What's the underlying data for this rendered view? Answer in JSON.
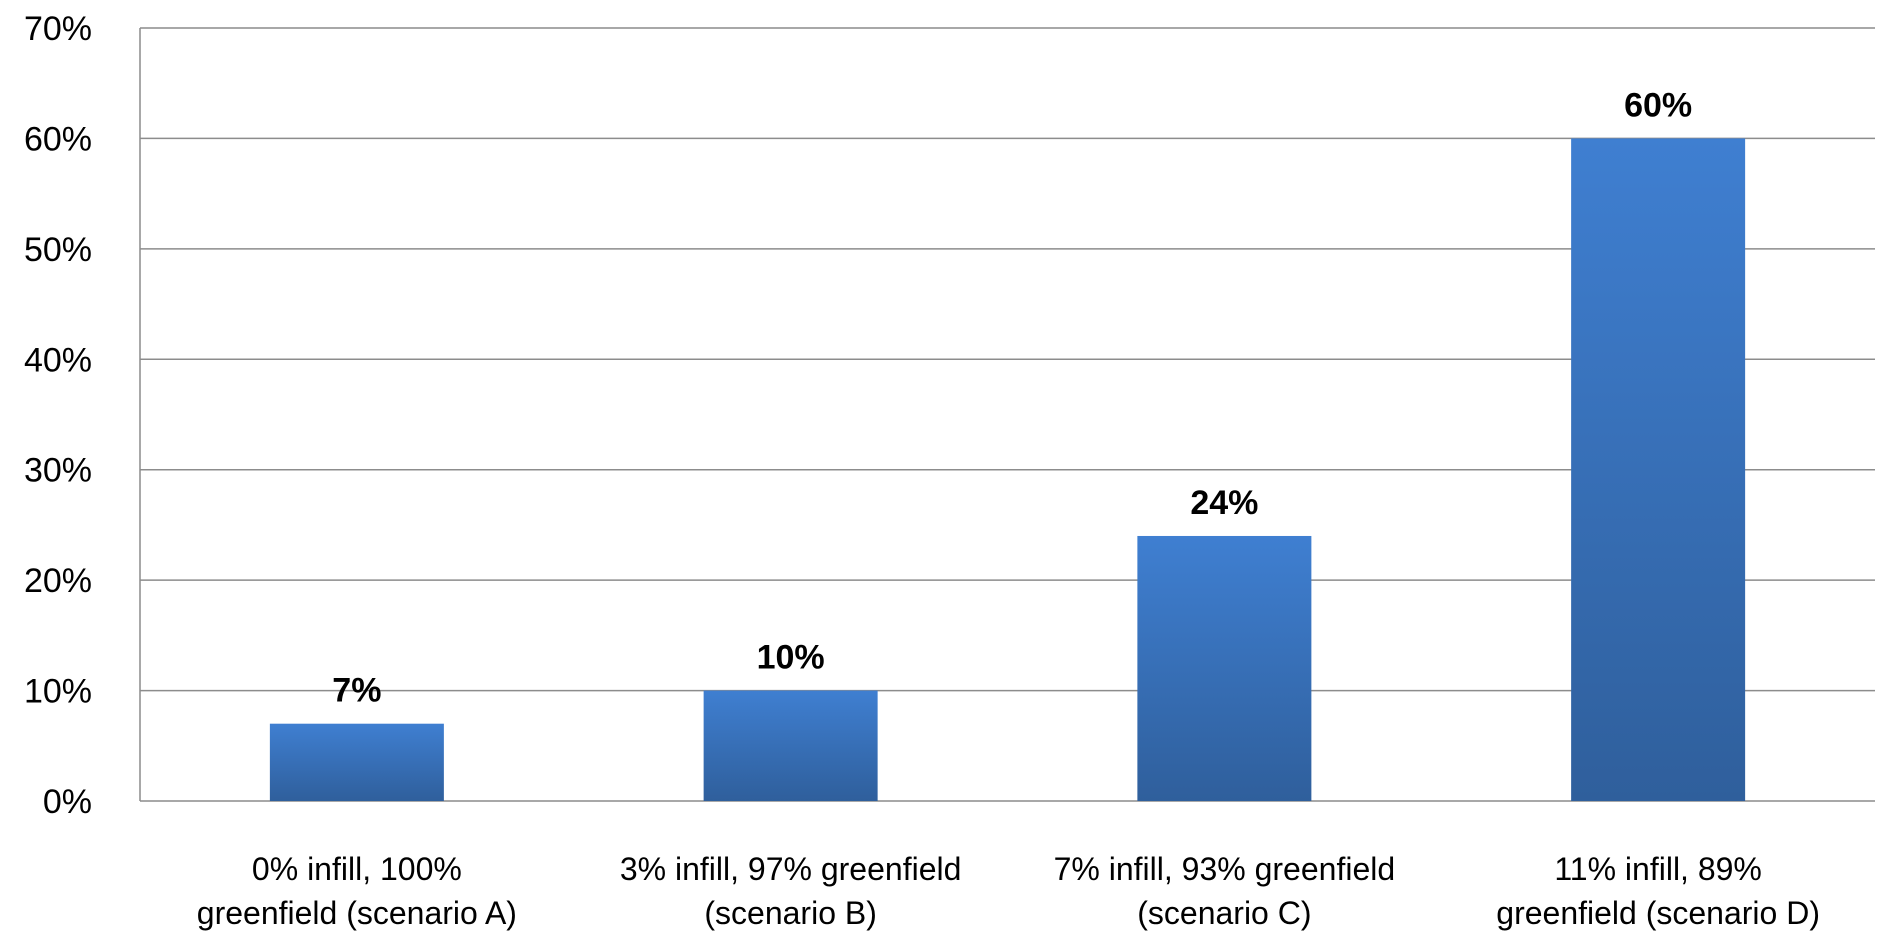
{
  "chart_data": {
    "type": "bar",
    "categories": [
      [
        "0% infill, 100%",
        "greenfield (scenario A)"
      ],
      [
        "3% infill, 97% greenfield",
        "(scenario B)"
      ],
      [
        "7% infill, 93% greenfield",
        "(scenario C)"
      ],
      [
        "11% infill, 89%",
        "greenfield (scenario D)"
      ]
    ],
    "values": [
      7,
      10,
      24,
      60
    ],
    "data_labels": [
      "7%",
      "10%",
      "24%",
      "60%"
    ],
    "ylim": [
      0,
      70
    ],
    "yticks": [
      0,
      10,
      20,
      30,
      40,
      50,
      60,
      70
    ],
    "ytick_labels": [
      "0%",
      "10%",
      "20%",
      "30%",
      "40%",
      "50%",
      "60%",
      "70%"
    ],
    "title": "",
    "xlabel": "",
    "ylabel": "",
    "grid": true,
    "legend": "none",
    "colors": {
      "bar_top": "#3f7fd1",
      "bar_bottom": "#2f5f9c",
      "grid": "#8c8c8c"
    }
  }
}
